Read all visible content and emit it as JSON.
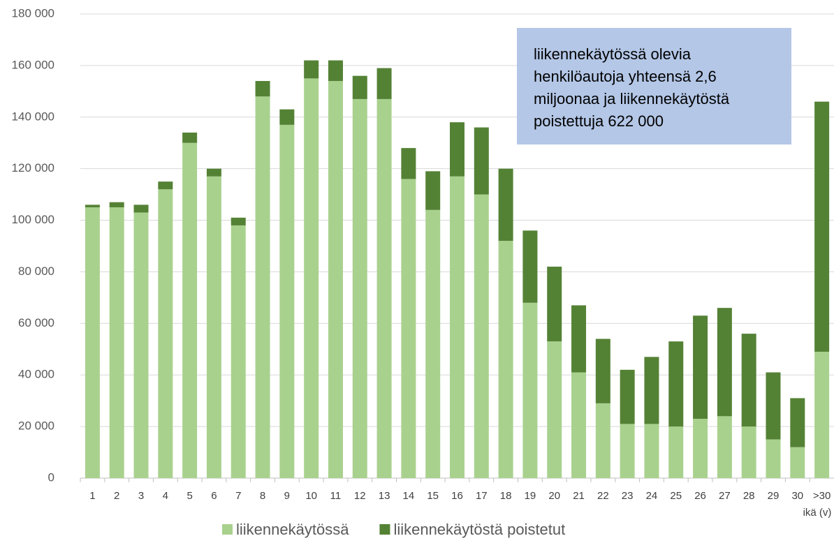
{
  "chart_data": {
    "type": "stacked_bar",
    "categories": [
      "1",
      "2",
      "3",
      "4",
      "5",
      "6",
      "7",
      "8",
      "9",
      "10",
      "11",
      "12",
      "13",
      "14",
      "15",
      "16",
      "17",
      "18",
      "19",
      "20",
      "21",
      "22",
      "23",
      "24",
      "25",
      "26",
      "27",
      "28",
      "29",
      "30",
      ">30"
    ],
    "series": [
      {
        "name": "liikennekäytössä",
        "color": "#a9d18e",
        "values": [
          105000,
          105000,
          103000,
          112000,
          130000,
          117000,
          98000,
          148000,
          137000,
          155000,
          154000,
          147000,
          147000,
          116000,
          104000,
          117000,
          110000,
          92000,
          68000,
          53000,
          41000,
          29000,
          21000,
          21000,
          20000,
          23000,
          24000,
          20000,
          15000,
          12000,
          49000
        ]
      },
      {
        "name": "liikennekäytöstä poistetut",
        "color": "#548235",
        "values": [
          1000,
          2000,
          3000,
          3000,
          4000,
          3000,
          3000,
          6000,
          6000,
          7000,
          8000,
          9000,
          12000,
          12000,
          15000,
          21000,
          26000,
          28000,
          28000,
          29000,
          26000,
          25000,
          21000,
          26000,
          33000,
          40000,
          42000,
          36000,
          26000,
          19000,
          97000
        ]
      }
    ],
    "ylim": [
      0,
      180000
    ],
    "yticks": [
      0,
      {
        "value": 20000,
        "label": "20 000"
      },
      {
        "value": 40000,
        "label": "40 000"
      },
      {
        "value": 60000,
        "label": "60 000"
      },
      {
        "value": 80000,
        "label": "80 000"
      },
      {
        "value": 100000,
        "label": "100 000"
      },
      {
        "value": 120000,
        "label": "120 000"
      },
      {
        "value": 140000,
        "label": "140 000"
      },
      {
        "value": 160000,
        "label": "160 000"
      },
      {
        "value": 180000,
        "label": "180 000"
      }
    ],
    "grid": true,
    "x_label": "ikä (v)",
    "annotation": "liikennekäytössä olevia henkilöautoja yhteensä 2,6 miljoonaa ja liikennekäytöstä poistettuja 622 000",
    "legend": "bottom"
  }
}
